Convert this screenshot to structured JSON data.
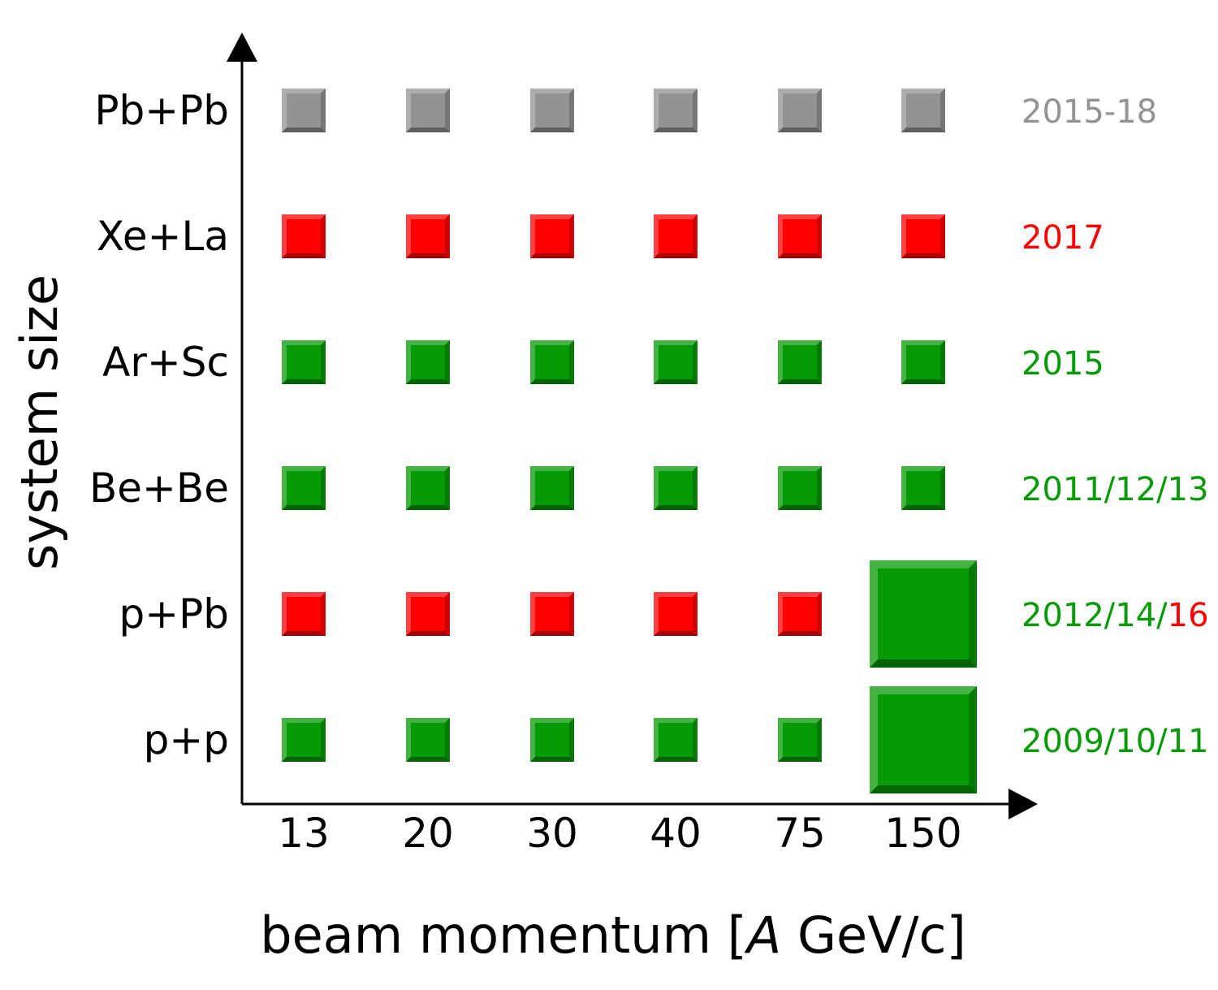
{
  "chart_data": {
    "type": "scatter",
    "xlabel": "beam momentum [A GeV/c]",
    "xlabel_parts": [
      {
        "text": "beam momentum [",
        "italic": false
      },
      {
        "text": "A",
        "italic": true
      },
      {
        "text": " GeV/c]",
        "italic": false
      }
    ],
    "ylabel": "system size",
    "x_categories": [
      "13",
      "20",
      "30",
      "40",
      "75",
      "150"
    ],
    "y_categories": [
      "p+p",
      "p+Pb",
      "Be+Be",
      "Ar+Sc",
      "Xe+La",
      "Pb+Pb"
    ],
    "colors": {
      "green": "#069a06",
      "red": "#ff0000",
      "gray": "#939393",
      "axis": "#000000"
    },
    "rows": [
      {
        "system": "p+p",
        "points": [
          "green",
          "green",
          "green",
          "green",
          "green",
          "green"
        ],
        "large": [
          false,
          false,
          false,
          false,
          false,
          true
        ],
        "years": [
          {
            "text": "2009/10/11",
            "color": "green"
          }
        ]
      },
      {
        "system": "p+Pb",
        "points": [
          "red",
          "red",
          "red",
          "red",
          "red",
          "green"
        ],
        "large": [
          false,
          false,
          false,
          false,
          false,
          true
        ],
        "years": [
          {
            "text": "2012/14/",
            "color": "green"
          },
          {
            "text": "16",
            "color": "red"
          }
        ]
      },
      {
        "system": "Be+Be",
        "points": [
          "green",
          "green",
          "green",
          "green",
          "green",
          "green"
        ],
        "large": [
          false,
          false,
          false,
          false,
          false,
          false
        ],
        "years": [
          {
            "text": "2011/12/13",
            "color": "green"
          }
        ]
      },
      {
        "system": "Ar+Sc",
        "points": [
          "green",
          "green",
          "green",
          "green",
          "green",
          "green"
        ],
        "large": [
          false,
          false,
          false,
          false,
          false,
          false
        ],
        "years": [
          {
            "text": "2015",
            "color": "green"
          }
        ]
      },
      {
        "system": "Xe+La",
        "points": [
          "red",
          "red",
          "red",
          "red",
          "red",
          "red"
        ],
        "large": [
          false,
          false,
          false,
          false,
          false,
          false
        ],
        "years": [
          {
            "text": "2017",
            "color": "red"
          }
        ]
      },
      {
        "system": "Pb+Pb",
        "points": [
          "gray",
          "gray",
          "gray",
          "gray",
          "gray",
          "gray"
        ],
        "large": [
          false,
          false,
          false,
          false,
          false,
          false
        ],
        "years": [
          {
            "text": "2015-18",
            "color": "gray"
          }
        ]
      }
    ]
  }
}
